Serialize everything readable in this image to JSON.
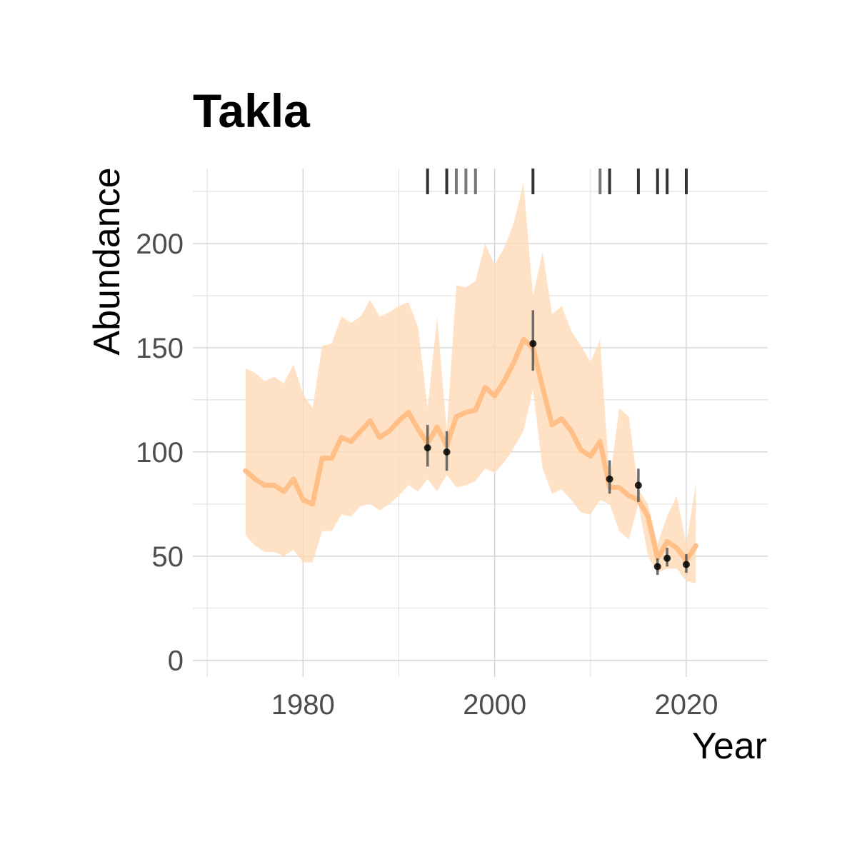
{
  "chart_data": {
    "type": "line",
    "title": "Takla",
    "xlabel": "Year",
    "ylabel": "Abundance",
    "xlim": [
      1968.5,
      2028.5
    ],
    "ylim": [
      -8,
      236
    ],
    "x_ticks": [
      1980,
      2000,
      2020
    ],
    "x_tick_labels": [
      "1980",
      "2000",
      "2020"
    ],
    "x_minor_ticks": [
      1970,
      1990,
      2010
    ],
    "y_ticks": [
      0,
      50,
      100,
      150,
      200
    ],
    "y_tick_labels": [
      "0",
      "50",
      "100",
      "150",
      "200"
    ],
    "y_minor_ticks": [
      25,
      75,
      125,
      175,
      225
    ],
    "grid": true,
    "legend": "none",
    "colors": {
      "line": "#ffbf86",
      "ribbon": "#ffdbb8",
      "points": "#000000",
      "errorbars": "#555555",
      "rug": "#333333"
    },
    "series": [
      {
        "x": [
          1974,
          1975,
          1976,
          1977,
          1978,
          1979,
          1980,
          1981,
          1982,
          1983,
          1984,
          1985,
          1986,
          1987,
          1988,
          1989,
          1990,
          1991,
          1992,
          1993,
          1994,
          1995,
          1996,
          1997,
          1998,
          1999,
          2000,
          2001,
          2002,
          2003,
          2004,
          2005,
          2006,
          2007,
          2008,
          2009,
          2010,
          2011,
          2012,
          2013,
          2014,
          2015,
          2016,
          2017,
          2018,
          2019,
          2020,
          2021
        ],
        "estimate": [
          91,
          87,
          84,
          84,
          81,
          87,
          77,
          75,
          97,
          97,
          107,
          105,
          110,
          115,
          107,
          110,
          115,
          119,
          111,
          104,
          112,
          103,
          117,
          119,
          120,
          131,
          127,
          134,
          143,
          154,
          150,
          131,
          113,
          116,
          110,
          101,
          98,
          105,
          83,
          83,
          79,
          77,
          69,
          49,
          57,
          54,
          48,
          55
        ],
        "lower": [
          60,
          55,
          52,
          52,
          50,
          53,
          47,
          47,
          62,
          62,
          70,
          69,
          74,
          75,
          72,
          75,
          79,
          84,
          81,
          87,
          81,
          89,
          83,
          84,
          86,
          92,
          90,
          95,
          102,
          110,
          130,
          92,
          80,
          82,
          77,
          71,
          70,
          77,
          75,
          62,
          58,
          75,
          50,
          42,
          44,
          44,
          38,
          37
        ],
        "upper": [
          140,
          138,
          134,
          136,
          133,
          142,
          128,
          121,
          151,
          152,
          165,
          162,
          165,
          173,
          165,
          167,
          170,
          172,
          160,
          121,
          165,
          110,
          180,
          179,
          182,
          200,
          190,
          198,
          210,
          229,
          175,
          196,
          166,
          170,
          158,
          151,
          143,
          154,
          86,
          121,
          117,
          82,
          75,
          56,
          69,
          79,
          56,
          85
        ]
      }
    ],
    "observed": {
      "x": [
        1993,
        1995,
        2004,
        2012,
        2015,
        2017,
        2018,
        2020
      ],
      "y": [
        102,
        100,
        152,
        87,
        84,
        45,
        49,
        46
      ],
      "lower": [
        93,
        91,
        139,
        80,
        76,
        41,
        45,
        42
      ],
      "upper": [
        113,
        110,
        168,
        96,
        92,
        49,
        54,
        51
      ]
    },
    "rug": {
      "x": [
        1993,
        1995,
        1996,
        1997,
        1998,
        2004,
        2011,
        2012,
        2015,
        2017,
        2018,
        2020
      ],
      "shade": [
        "dark",
        "dark",
        "light",
        "light",
        "light",
        "dark",
        "light",
        "dark",
        "dark",
        "dark",
        "dark",
        "dark"
      ]
    }
  }
}
